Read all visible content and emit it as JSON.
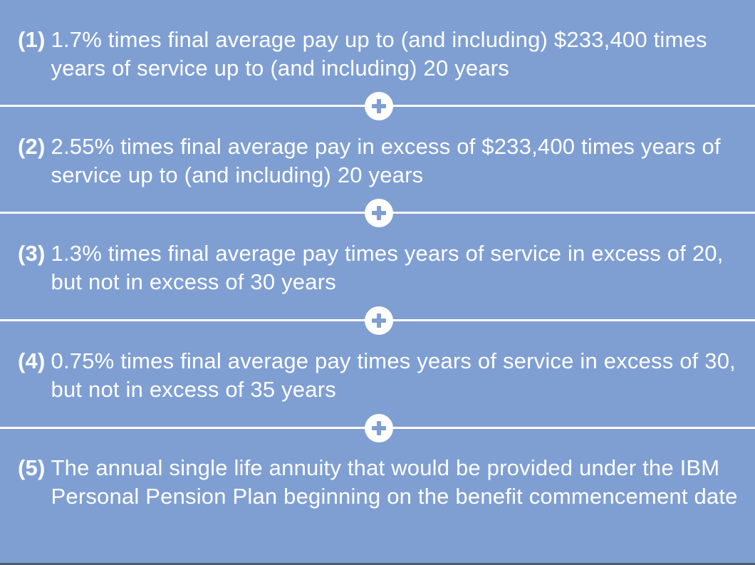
{
  "colors": {
    "background": "#7f9fd3",
    "text": "#ffffff",
    "divider": "#ffffff",
    "plus_circle": "#ffffff"
  },
  "items": [
    {
      "number": "(1)",
      "text": "1.7% times final average pay up to (and including) $233,400 times years of service up to (and including) 20 years"
    },
    {
      "number": "(2)",
      "text": "2.55% times final average pay in excess of $233,400 times years of service up to (and including) 20 years"
    },
    {
      "number": "(3)",
      "text": "1.3% times final average pay times years of service in excess of 20, but not in excess of 30 years"
    },
    {
      "number": "(4)",
      "text": "0.75% times final average pay times years of service in excess of 30, but not in excess of 35 years"
    },
    {
      "number": "(5)",
      "text": "The annual single life annuity that would be provided under the IBM Personal Pension Plan beginning on the benefit commencement date"
    }
  ],
  "connector_icon": "plus-icon"
}
